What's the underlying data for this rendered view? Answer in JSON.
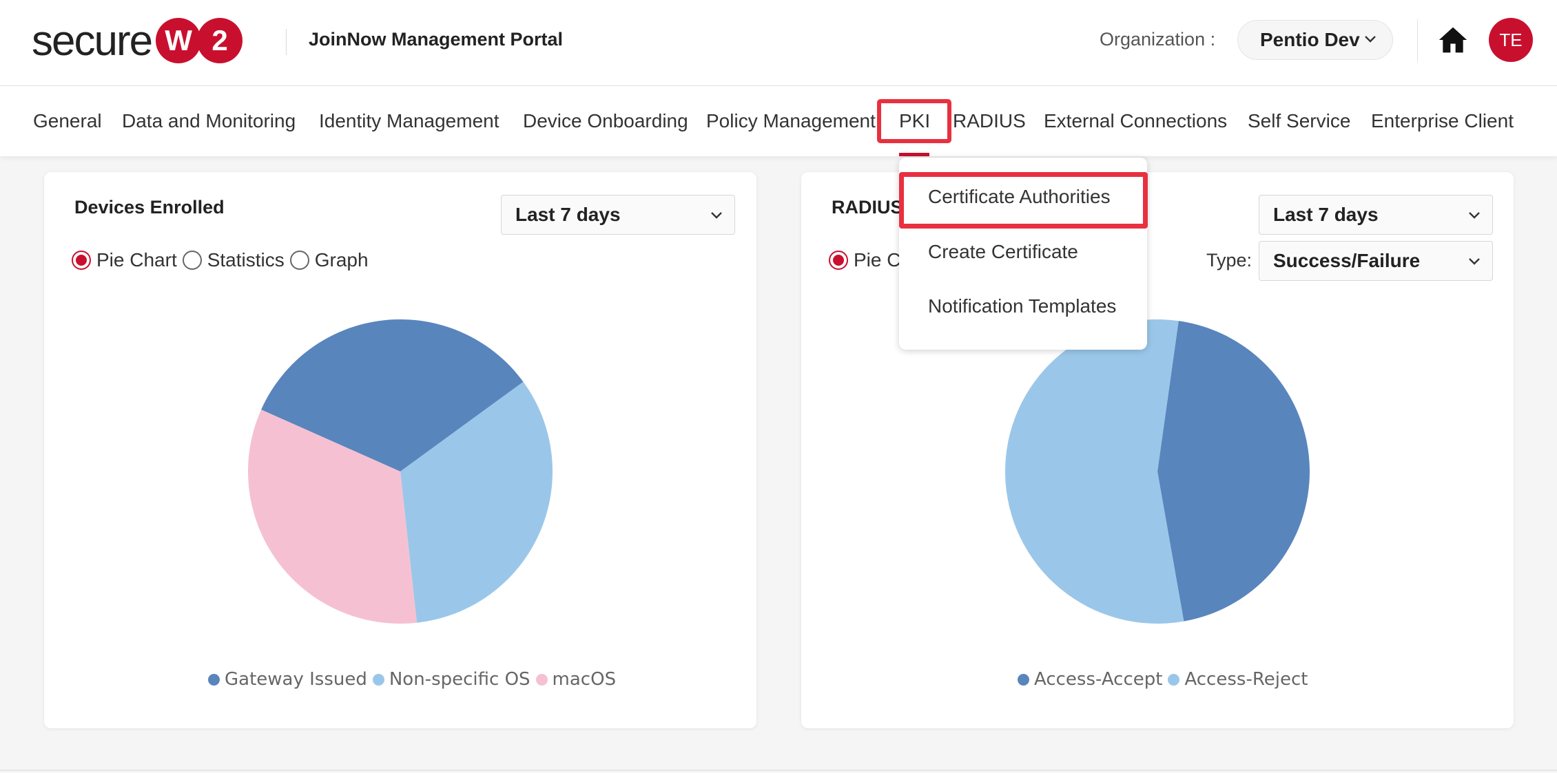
{
  "header": {
    "logo_text": "secure",
    "logo_w": "W",
    "logo_2": "2",
    "portal_title": "JoinNow Management Portal",
    "org_label": "Organization :",
    "org_value": "Pentio Dev",
    "avatar_initials": "TE",
    "home_icon": "home-icon"
  },
  "nav": {
    "items": [
      {
        "label": "General"
      },
      {
        "label": "Data and Monitoring"
      },
      {
        "label": "Identity Management"
      },
      {
        "label": "Device Onboarding"
      },
      {
        "label": "Policy Management"
      },
      {
        "label": "PKI"
      },
      {
        "label": "RADIUS"
      },
      {
        "label": "External Connections"
      },
      {
        "label": "Self Service"
      },
      {
        "label": "Enterprise Client"
      }
    ],
    "active": "PKI"
  },
  "pki_dropdown": {
    "items": [
      {
        "label": "Certificate Authorities"
      },
      {
        "label": "Create Certificate"
      },
      {
        "label": "Notification Templates"
      }
    ]
  },
  "cards": {
    "devices": {
      "title": "Devices Enrolled",
      "range": "Last 7 days",
      "options": [
        {
          "label": "Pie Chart",
          "checked": true
        },
        {
          "label": "Statistics",
          "checked": false
        },
        {
          "label": "Graph",
          "checked": false
        }
      ]
    },
    "radius": {
      "title": "RADIUS",
      "range": "Last 7 days",
      "type_label": "Type:",
      "type_value": "Success/Failure",
      "options": [
        {
          "label": "Pie C",
          "checked": true
        }
      ]
    }
  },
  "colors": {
    "brand": "#c8102e",
    "highlight": "#e8303f",
    "dark_blue": "#5985bd",
    "light_blue": "#9ac7e9",
    "pink": "#f5c1d2"
  },
  "chart_data": [
    {
      "type": "pie",
      "title": "Devices Enrolled",
      "series": [
        {
          "name": "Gateway Issued",
          "value": 33.3,
          "color": "#5985bd"
        },
        {
          "name": "Non-specific OS",
          "value": 33.3,
          "color": "#9ac7e9"
        },
        {
          "name": "macOS",
          "value": 33.4,
          "color": "#f5c1d2"
        }
      ],
      "legend": "bottom"
    },
    {
      "type": "pie",
      "title": "RADIUS",
      "series": [
        {
          "name": "Access-Accept",
          "value": 45,
          "color": "#5985bd"
        },
        {
          "name": "Access-Reject",
          "value": 55,
          "color": "#9ac7e9"
        }
      ],
      "legend": "bottom"
    }
  ]
}
